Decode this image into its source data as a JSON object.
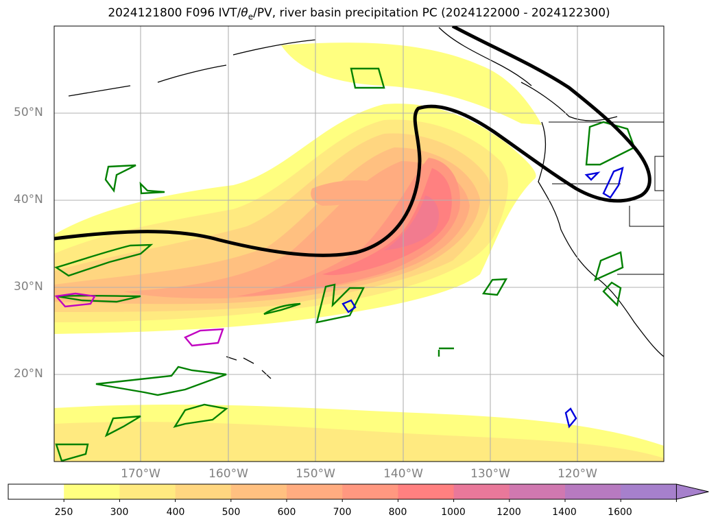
{
  "title": {
    "prefix": "2024121800 F096 IVT/",
    "theta": "θ",
    "theta_sub": "e",
    "suffix": "/PV, river basin precipitation PC (2024122000 - 2024122300)"
  },
  "axes": {
    "lat_labels": [
      "50°N",
      "40°N",
      "30°N",
      "20°N"
    ],
    "lon_labels": [
      "170°W",
      "160°W",
      "150°W",
      "140°W",
      "130°W",
      "120°W"
    ]
  },
  "colorbar": {
    "ticks": [
      "250",
      "300",
      "400",
      "500",
      "600",
      "700",
      "800",
      "1000",
      "1200",
      "1400",
      "1600"
    ],
    "colors": [
      "#ffffff",
      "#ffff80",
      "#ffea80",
      "#ffd680",
      "#ffc080",
      "#ffac80",
      "#ff9880",
      "#ff8080",
      "#e9789a",
      "#d078b0",
      "#b77ac0",
      "#a680cc"
    ]
  }
}
